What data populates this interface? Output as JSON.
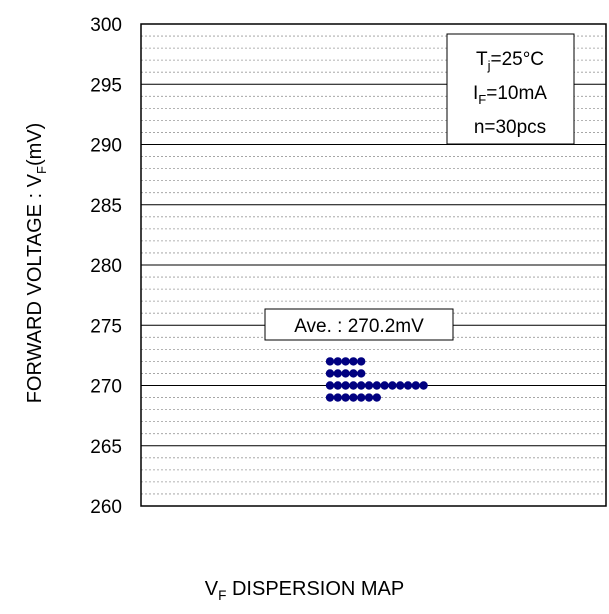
{
  "chart_data": {
    "type": "scatter",
    "ylabel": {
      "main": "FORWARD VOLTAGE : V",
      "sub": "F",
      "unit": "(mV)"
    },
    "xlabel": {
      "main": "V",
      "sub": "F",
      "rest": " DISPERSION MAP"
    },
    "ylim": [
      260,
      300
    ],
    "yticks": [
      260,
      265,
      270,
      275,
      280,
      285,
      290,
      295,
      300
    ],
    "grid": {
      "major": true,
      "minor": true,
      "minor_step": 1
    },
    "average_label": "Ave. : 270.2mV",
    "conditions": [
      {
        "main": "T",
        "sub": "j",
        "rest": "=25°C"
      },
      {
        "main": "I",
        "sub": "F",
        "rest": "=10mA"
      },
      {
        "main": "",
        "sub": "",
        "rest": "n=30pcs"
      }
    ],
    "points": [
      {
        "value": 272,
        "count": 5
      },
      {
        "value": 271,
        "count": 5
      },
      {
        "value": 270,
        "count": 13
      },
      {
        "value": 269,
        "count": 7
      }
    ],
    "marker_color": "#000080"
  }
}
